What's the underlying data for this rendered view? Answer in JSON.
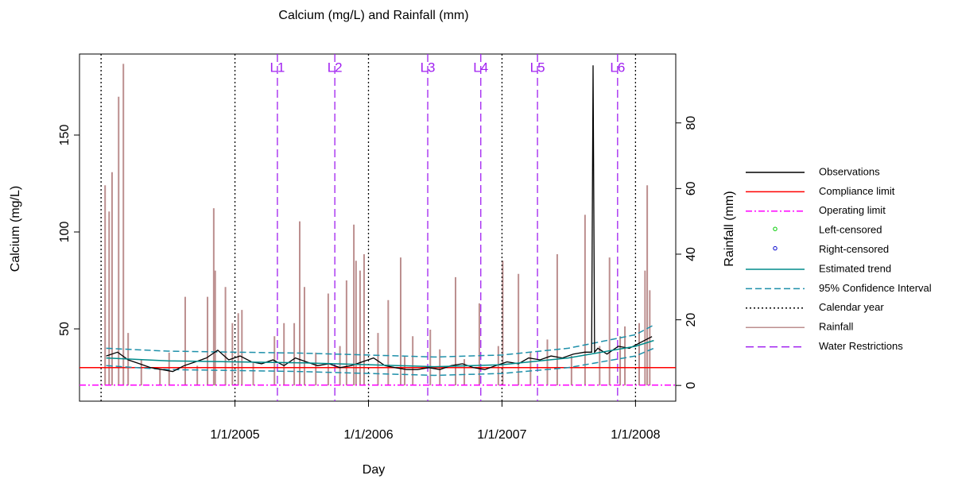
{
  "chart_data": {
    "type": "line",
    "title": "Calcium (mg/L) and Rainfall (mm)",
    "xlabel": "Day",
    "ylabel": "Calcium (mg/L)",
    "y2label": "Rainfall (mm)",
    "xlim": [
      "2003-11-03",
      "2008-04-20"
    ],
    "xticks": [
      {
        "value": "2005-01-01",
        "label": "1/1/2005"
      },
      {
        "value": "2006-01-01",
        "label": "1/1/2006"
      },
      {
        "value": "2007-01-01",
        "label": "1/1/2007"
      },
      {
        "value": "2008-01-01",
        "label": "1/1/2008"
      }
    ],
    "ylim": [
      12.7,
      191.8
    ],
    "yticks": [
      50,
      100,
      150
    ],
    "y2lim": [
      -4.8,
      101
    ],
    "y2ticks": [
      0,
      20,
      40,
      60,
      80
    ],
    "series": [
      {
        "name": "Observations",
        "color": "#000000",
        "style": "line",
        "dash": "solid",
        "x": [
          "2004-01-15",
          "2004-02-15",
          "2004-03-15",
          "2004-04-15",
          "2004-05-15",
          "2004-06-15",
          "2004-07-15",
          "2004-08-15",
          "2004-09-15",
          "2004-10-15",
          "2004-11-15",
          "2004-12-15",
          "2005-01-15",
          "2005-02-15",
          "2005-03-15",
          "2005-04-15",
          "2005-05-15",
          "2005-06-15",
          "2005-07-15",
          "2005-08-15",
          "2005-09-15",
          "2005-10-15",
          "2005-11-15",
          "2005-12-15",
          "2006-01-15",
          "2006-02-15",
          "2006-03-15",
          "2006-04-15",
          "2006-05-15",
          "2006-06-15",
          "2006-07-15",
          "2006-08-15",
          "2006-09-15",
          "2006-10-15",
          "2006-11-15",
          "2006-12-15",
          "2007-01-15",
          "2007-02-15",
          "2007-03-15",
          "2007-04-15",
          "2007-05-15",
          "2007-06-15",
          "2007-07-15",
          "2007-08-15",
          "2007-09-03",
          "2007-09-07",
          "2007-09-11",
          "2007-09-20",
          "2007-10-15",
          "2007-11-15",
          "2007-12-15",
          "2008-01-15",
          "2008-02-15"
        ],
        "values": [
          36,
          38,
          34,
          32,
          30,
          29,
          28,
          31,
          33,
          35,
          39,
          34,
          36,
          33,
          32,
          34,
          31,
          35,
          33,
          31,
          32,
          30,
          31,
          33,
          35,
          31,
          30,
          29,
          29,
          30,
          29,
          31,
          32,
          30,
          29,
          31,
          33,
          32,
          35,
          34,
          36,
          35,
          37,
          38,
          38,
          186,
          38,
          40,
          37,
          41,
          40,
          43,
          46
        ]
      },
      {
        "name": "Compliance limit",
        "color": "#ff0000",
        "style": "hline",
        "dash": "solid",
        "values": [
          30
        ]
      },
      {
        "name": "Operating limit",
        "color": "#ff00ff",
        "style": "hline",
        "dash": "dashdot",
        "values": [
          21
        ]
      },
      {
        "name": "Left-censored",
        "color": "#00cc00",
        "style": "points",
        "marker": "circle",
        "x": [],
        "values": []
      },
      {
        "name": "Right-censored",
        "color": "#0000cc",
        "style": "points",
        "marker": "circle",
        "x": [],
        "values": []
      },
      {
        "name": "Estimated trend",
        "color": "#008b8b",
        "style": "line",
        "dash": "solid",
        "x": [
          "2004-01-15",
          "2004-07-01",
          "2005-01-01",
          "2005-07-01",
          "2006-01-01",
          "2006-07-01",
          "2007-01-01",
          "2007-07-01",
          "2008-01-01",
          "2008-02-20"
        ],
        "values": [
          35,
          33.5,
          33,
          32.5,
          31.5,
          30.5,
          31.5,
          35,
          41,
          44
        ]
      },
      {
        "name": "95% Confidence Interval",
        "color": "#1e90aa",
        "style": "band",
        "dash": "dashed",
        "x": [
          "2004-01-15",
          "2004-07-01",
          "2005-01-01",
          "2005-07-01",
          "2006-01-01",
          "2006-07-01",
          "2007-01-01",
          "2007-07-01",
          "2008-01-01",
          "2008-02-20"
        ],
        "upper": [
          40,
          38.5,
          38,
          37.5,
          36.5,
          35.5,
          36.5,
          40,
          47,
          52
        ],
        "lower": [
          31,
          29,
          28.5,
          28,
          27,
          26,
          27,
          30,
          36,
          40
        ]
      },
      {
        "name": "Calendar year",
        "color": "#000000",
        "style": "vline",
        "dash": "dotted",
        "x": [
          "2004-01-01",
          "2005-01-01",
          "2006-01-01",
          "2007-01-01",
          "2008-01-01"
        ]
      },
      {
        "name": "Rainfall",
        "color": "#bc8f8f",
        "style": "spike",
        "dash": "solid",
        "axis": "y2",
        "x": [
          "2004-01-12",
          "2004-01-23",
          "2004-01-31",
          "2004-02-18",
          "2004-03-02",
          "2004-03-15",
          "2004-04-20",
          "2004-06-10",
          "2004-07-05",
          "2004-08-18",
          "2004-09-20",
          "2004-10-18",
          "2004-11-04",
          "2004-11-08",
          "2004-12-06",
          "2004-12-25",
          "2005-01-10",
          "2005-01-20",
          "2005-02-20",
          "2005-04-19",
          "2005-05-15",
          "2005-06-12",
          "2005-06-27",
          "2005-07-10",
          "2005-08-10",
          "2005-09-13",
          "2005-10-15",
          "2005-11-02",
          "2005-11-22",
          "2005-11-28",
          "2005-12-09",
          "2005-12-20",
          "2006-01-27",
          "2006-02-24",
          "2006-03-30",
          "2006-04-10",
          "2006-05-02",
          "2006-06-19",
          "2006-07-15",
          "2006-08-27",
          "2006-09-20",
          "2006-10-31",
          "2006-12-22",
          "2007-01-03",
          "2007-02-15",
          "2007-03-20",
          "2007-05-05",
          "2007-06-01",
          "2007-07-10",
          "2007-08-16",
          "2007-09-25",
          "2007-10-22",
          "2007-11-20",
          "2007-12-03",
          "2008-01-11",
          "2008-01-27",
          "2008-02-02",
          "2008-02-09"
        ],
        "values": [
          61,
          53,
          65,
          88,
          98,
          16,
          8,
          5,
          10,
          27,
          6,
          27,
          54,
          35,
          30,
          19,
          22,
          23,
          7,
          15,
          19,
          19,
          50,
          30,
          10,
          28,
          12,
          32,
          49,
          38,
          35,
          40,
          16,
          26,
          39,
          9,
          15,
          17,
          11,
          33,
          8,
          25,
          12,
          38,
          34,
          10,
          14,
          40,
          9,
          52,
          12,
          39,
          15,
          18,
          19,
          35,
          61,
          29
        ]
      },
      {
        "name": "Water Restrictions",
        "color": "#a020f0",
        "style": "vline",
        "dash": "longdash",
        "x": [
          "2005-04-27",
          "2005-10-01",
          "2006-06-12",
          "2006-11-04",
          "2007-04-08",
          "2007-11-13"
        ],
        "labels": [
          "L1",
          "L2",
          "L3",
          "L4",
          "L5",
          "L6"
        ]
      }
    ]
  }
}
